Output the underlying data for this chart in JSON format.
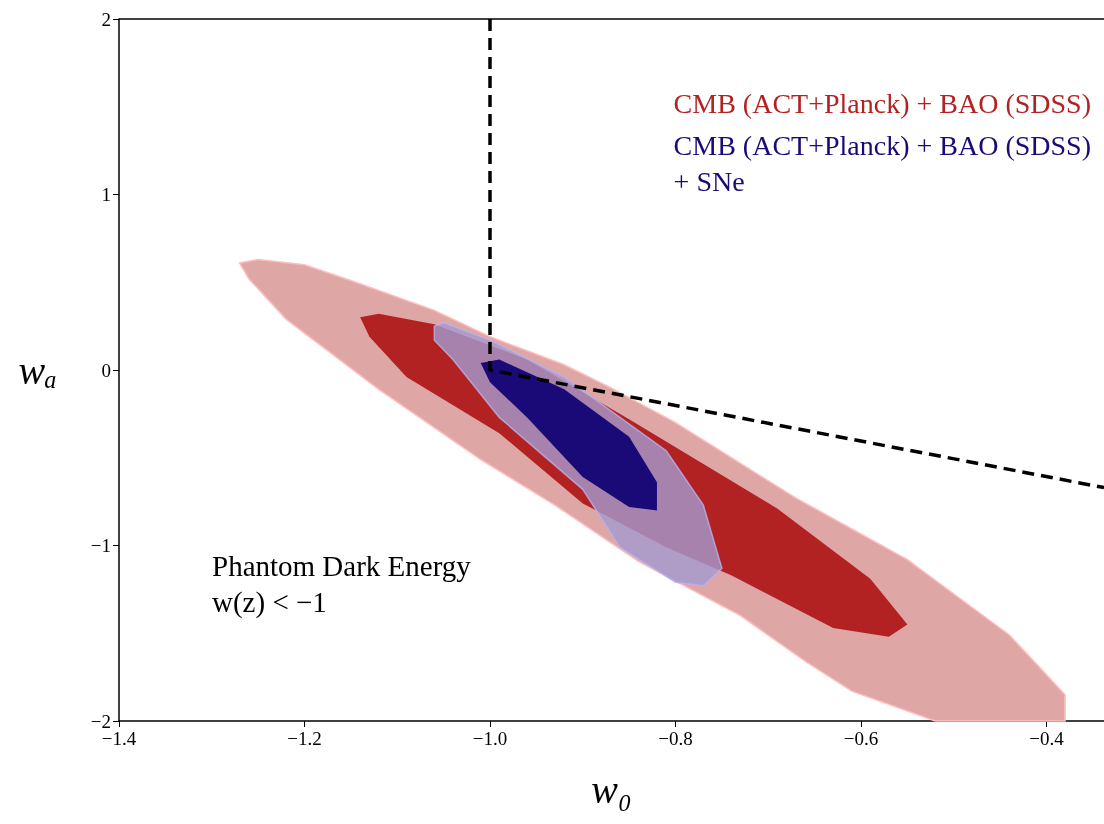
{
  "chart_data": {
    "type": "area",
    "xlabel": "w₀",
    "ylabel": "wₐ",
    "xlim": [
      -1.4,
      -0.338
    ],
    "ylim": [
      -2,
      2
    ],
    "xticks": [
      {
        "value": -1.4,
        "label": "−1.4"
      },
      {
        "value": -1.2,
        "label": "−1.2"
      },
      {
        "value": -1.0,
        "label": "−1.0"
      },
      {
        "value": -0.8,
        "label": "−0.8"
      },
      {
        "value": -0.6,
        "label": "−0.6"
      },
      {
        "value": -0.4,
        "label": "−0.4"
      }
    ],
    "yticks": [
      {
        "value": -2,
        "label": "−2"
      },
      {
        "value": -1,
        "label": "−1"
      },
      0,
      1,
      2
    ],
    "grid": false,
    "legend": "top right",
    "annotations": [
      "Phantom Dark Energy\nw(z) < −1"
    ],
    "series": [
      {
        "color": "#dfa6a6",
        "x": [
          -1.27,
          -1.25,
          -1.2,
          -1.15,
          -1.06,
          -1.0,
          -0.92,
          -0.87,
          -0.8,
          -0.67,
          -0.55,
          -0.44,
          -0.41,
          -0.38,
          -0.38,
          -0.52,
          -0.61,
          -0.66,
          -0.73,
          -0.84,
          -0.93,
          -1.01,
          -1.12,
          -1.22,
          -1.26
        ],
        "values": [
          0.61,
          0.63,
          0.6,
          0.51,
          0.34,
          0.19,
          0.03,
          -0.1,
          -0.3,
          -0.73,
          -1.08,
          -1.51,
          -1.68,
          -1.85,
          -2.0,
          -2.0,
          -1.83,
          -1.66,
          -1.4,
          -1.09,
          -0.77,
          -0.51,
          -0.11,
          0.29,
          0.52
        ]
      },
      {
        "name": "CMB (ACT+Planck) + BAO (SDSS)",
        "color": "#b22222",
        "x": [
          -1.14,
          -1.12,
          -1.06,
          -0.96,
          -0.85,
          -0.69,
          -0.59,
          -0.55,
          -0.57,
          -0.63,
          -0.74,
          -0.81,
          -0.9,
          -0.99,
          -1.09,
          -1.13
        ],
        "values": [
          0.3,
          0.32,
          0.26,
          0.06,
          -0.28,
          -0.79,
          -1.19,
          -1.45,
          -1.52,
          -1.47,
          -1.17,
          -1.01,
          -0.76,
          -0.36,
          -0.04,
          0.19
        ]
      },
      {
        "color": "#a29bcf",
        "x": [
          -1.06,
          -1.05,
          -1.0,
          -0.92,
          -0.81,
          -0.77,
          -0.75,
          -0.77,
          -0.8,
          -0.86,
          -0.9,
          -0.99,
          -1.04,
          -1.06
        ],
        "values": [
          0.25,
          0.27,
          0.17,
          -0.04,
          -0.46,
          -0.77,
          -1.13,
          -1.23,
          -1.21,
          -1.01,
          -0.68,
          -0.27,
          0.06,
          0.17
        ]
      },
      {
        "name": "CMB (ACT+Planck) + BAO (SDSS)\n+ SNe",
        "color": "#1a0a78",
        "x": [
          -1.01,
          -0.99,
          -0.92,
          -0.85,
          -0.82,
          -0.82,
          -0.85,
          -0.9,
          -0.96,
          -1.0
        ],
        "values": [
          0.04,
          0.06,
          -0.11,
          -0.38,
          -0.64,
          -0.8,
          -0.78,
          -0.61,
          -0.27,
          -0.07
        ]
      },
      {
        "type": "line",
        "line_style": "dashed",
        "marker": "none",
        "color": "#000000",
        "x": [
          -1.0,
          -1.0,
          -0.338
        ],
        "values": [
          2,
          0,
          -0.67
        ]
      }
    ]
  }
}
